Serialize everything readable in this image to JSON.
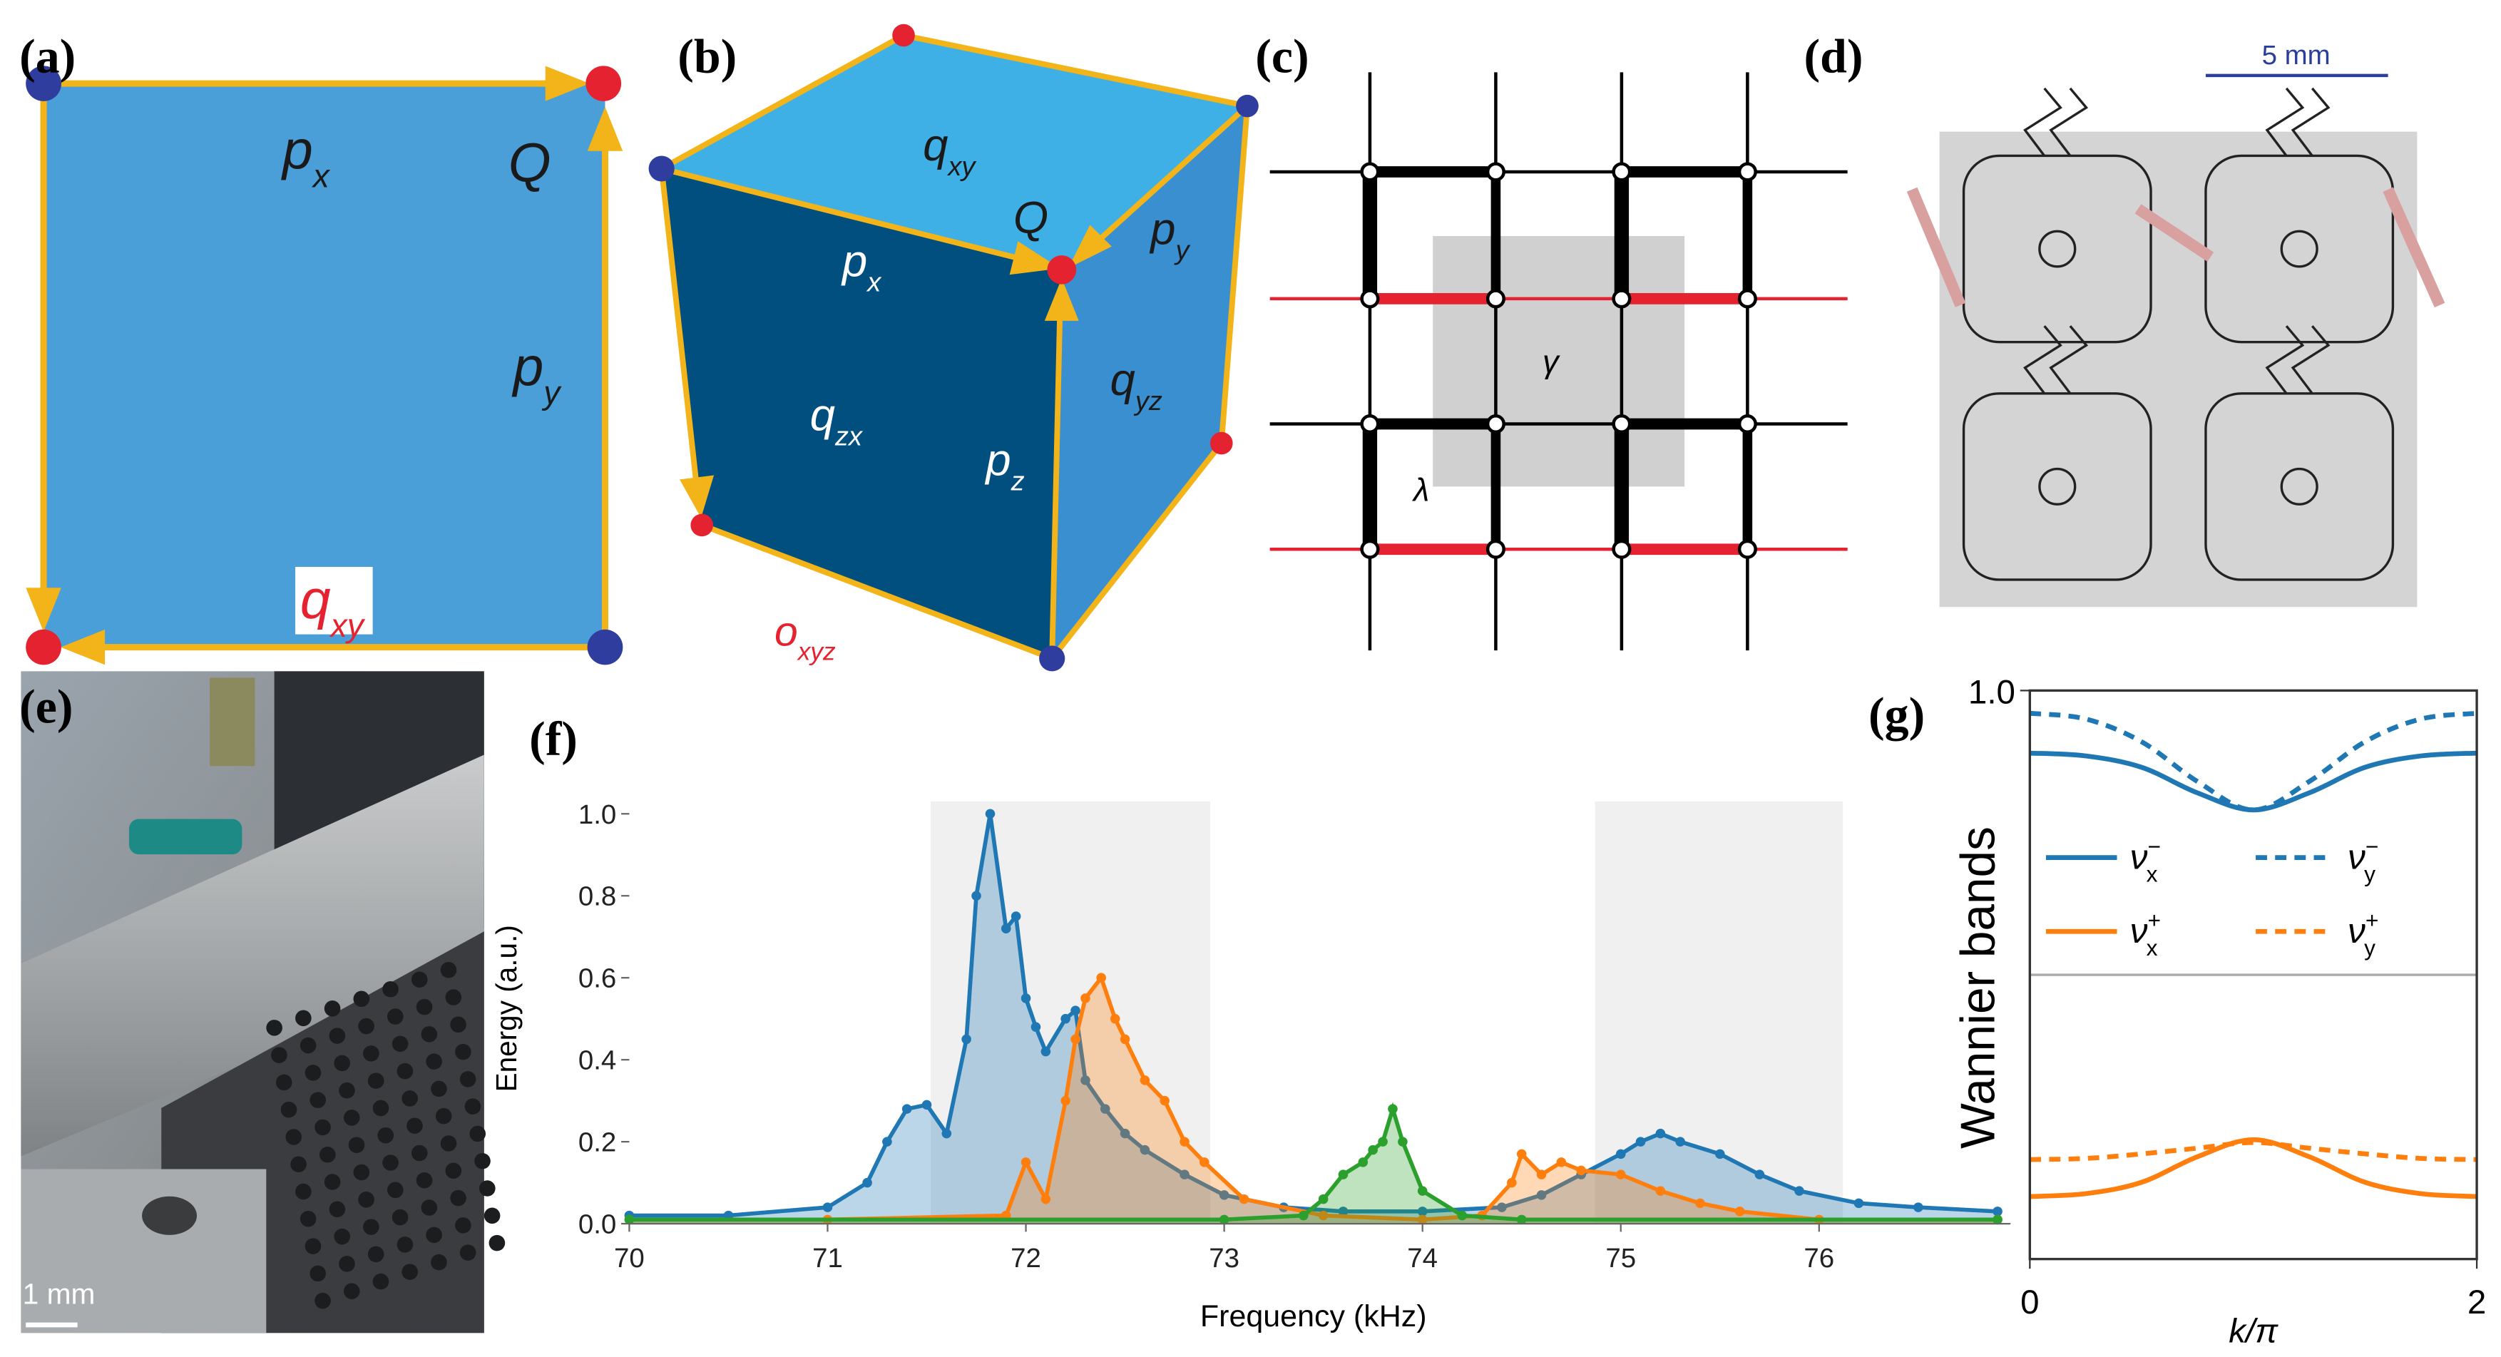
{
  "panels": {
    "a": {
      "label": "(a)",
      "px": {
        "base": "p",
        "sub": "x"
      },
      "Q": "Q",
      "py": {
        "base": "p",
        "sub": "y"
      },
      "qxy": {
        "base": "q",
        "sub": "xy"
      }
    },
    "b": {
      "label": "(b)",
      "qxy": {
        "base": "q",
        "sub": "xy"
      },
      "Q": "Q",
      "px": {
        "base": "p",
        "sub": "x"
      },
      "py": {
        "base": "p",
        "sub": "y"
      },
      "qzx": {
        "base": "q",
        "sub": "zx"
      },
      "pz": {
        "base": "p",
        "sub": "z"
      },
      "qyz": {
        "base": "q",
        "sub": "yz"
      },
      "oxyz": {
        "base": "o",
        "sub": "xyz"
      }
    },
    "c": {
      "label": "(c)",
      "gamma": "γ",
      "lambda": "λ"
    },
    "d": {
      "label": "(d)",
      "scale": "5 mm"
    },
    "e": {
      "label": "(e)",
      "scale": "1 mm"
    },
    "f": {
      "label": "(f)"
    },
    "g": {
      "label": "(g)"
    }
  },
  "chart_data": [
    {
      "type": "line",
      "xlabel": "Frequency (kHz)",
      "ylabel": "Energy (a.u.)",
      "xlim": [
        70,
        76.9
      ],
      "ylim": [
        0,
        1.05
      ],
      "xticks": [
        70,
        71,
        72,
        73,
        74,
        75,
        76
      ],
      "yticks": [
        {
          "value": 0,
          "label": "0.0"
        },
        0.2,
        0.4,
        0.6,
        0.8,
        {
          "value": 1,
          "label": "1.0"
        }
      ],
      "shaded_regions": [
        [
          71.52,
          72.93
        ],
        [
          74.87,
          76.12
        ]
      ],
      "series": [
        {
          "color": "#1f77b4",
          "x": [
            70,
            70.5,
            71,
            71.2,
            71.3,
            71.4,
            71.5,
            71.6,
            71.7,
            71.75,
            71.82,
            71.9,
            71.95,
            72.0,
            72.05,
            72.1,
            72.2,
            72.25,
            72.3,
            72.4,
            72.5,
            72.6,
            72.8,
            73.0,
            73.3,
            73.6,
            74.0,
            74.4,
            74.6,
            74.8,
            75.0,
            75.1,
            75.2,
            75.3,
            75.5,
            75.7,
            75.9,
            76.2,
            76.5,
            76.9
          ],
          "values": [
            0.02,
            0.02,
            0.04,
            0.1,
            0.2,
            0.28,
            0.29,
            0.22,
            0.45,
            0.8,
            1.0,
            0.72,
            0.75,
            0.55,
            0.48,
            0.42,
            0.5,
            0.52,
            0.35,
            0.28,
            0.22,
            0.18,
            0.12,
            0.07,
            0.04,
            0.03,
            0.03,
            0.04,
            0.07,
            0.12,
            0.17,
            0.2,
            0.22,
            0.2,
            0.17,
            0.12,
            0.08,
            0.05,
            0.04,
            0.03
          ]
        },
        {
          "color": "#ff7f0e",
          "x": [
            70,
            71,
            71.9,
            72.0,
            72.1,
            72.2,
            72.25,
            72.3,
            72.38,
            72.45,
            72.5,
            72.6,
            72.7,
            72.8,
            72.9,
            73.1,
            73.5,
            74.0,
            74.3,
            74.45,
            74.5,
            74.6,
            74.7,
            74.8,
            75.0,
            75.2,
            75.4,
            75.6,
            76.0,
            76.9
          ],
          "values": [
            0.01,
            0.01,
            0.02,
            0.15,
            0.06,
            0.3,
            0.45,
            0.55,
            0.6,
            0.5,
            0.45,
            0.35,
            0.3,
            0.2,
            0.15,
            0.06,
            0.02,
            0.01,
            0.02,
            0.1,
            0.17,
            0.12,
            0.15,
            0.13,
            0.12,
            0.08,
            0.05,
            0.03,
            0.01,
            0.01
          ]
        },
        {
          "color": "#2ca02c",
          "x": [
            70,
            73.0,
            73.4,
            73.5,
            73.6,
            73.7,
            73.75,
            73.8,
            73.85,
            73.9,
            74.0,
            74.2,
            74.5,
            76.9
          ],
          "values": [
            0.01,
            0.01,
            0.02,
            0.06,
            0.12,
            0.15,
            0.18,
            0.2,
            0.28,
            0.2,
            0.08,
            0.02,
            0.01,
            0.01
          ]
        }
      ]
    },
    {
      "type": "line",
      "xlabel": "k/π",
      "ylabel": "Wannier bands",
      "xlim": [
        0,
        2
      ],
      "ylim": [
        0,
        1
      ],
      "xticks": [
        0,
        2
      ],
      "yticks": [
        {
          "value": 1,
          "label": "1.0"
        }
      ],
      "hline": 0.5,
      "x": [
        0,
        0.25,
        0.5,
        0.75,
        1,
        1.25,
        1.5,
        1.75,
        2
      ],
      "series": [
        {
          "name": "ν",
          "sub": "x",
          "sup": "−",
          "color": "#1f77b4",
          "linestyle": "solid",
          "values": [
            0.89,
            0.885,
            0.865,
            0.82,
            0.79,
            0.82,
            0.865,
            0.885,
            0.89
          ]
        },
        {
          "name": "ν",
          "sub": "y",
          "sup": "−",
          "color": "#1f77b4",
          "linestyle": "dashed",
          "values": [
            0.96,
            0.95,
            0.91,
            0.84,
            0.79,
            0.84,
            0.91,
            0.95,
            0.96
          ]
        },
        {
          "name": "ν",
          "sub": "x",
          "sup": "+",
          "color": "#ff7f0e",
          "linestyle": "solid",
          "values": [
            0.11,
            0.115,
            0.135,
            0.18,
            0.21,
            0.18,
            0.135,
            0.115,
            0.11
          ]
        },
        {
          "name": "ν",
          "sub": "y",
          "sup": "+",
          "color": "#ff7f0e",
          "linestyle": "dashed",
          "values": [
            0.175,
            0.177,
            0.185,
            0.195,
            0.205,
            0.195,
            0.185,
            0.177,
            0.175
          ]
        }
      ]
    }
  ]
}
